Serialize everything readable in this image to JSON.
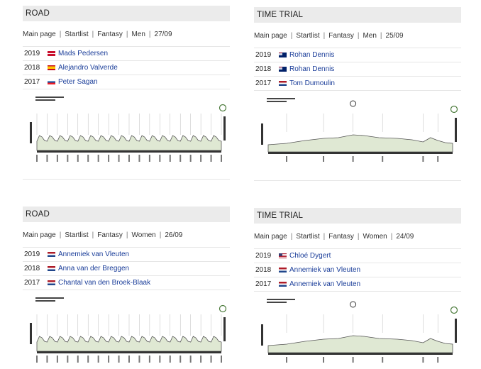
{
  "panels": [
    {
      "title": "ROAD",
      "nav": [
        "Main page",
        "Startlist",
        "Fantasy",
        "Men",
        "27/09"
      ],
      "winners": [
        {
          "year": "2019",
          "flag": "dk",
          "name": "Mads Pedersen"
        },
        {
          "year": "2018",
          "flag": "es",
          "name": "Alejandro Valverde"
        },
        {
          "year": "2017",
          "flag": "sk",
          "name": "Peter Sagan"
        }
      ],
      "profile_kind": "road"
    },
    {
      "title": "TIME TRIAL",
      "nav": [
        "Main page",
        "Startlist",
        "Fantasy",
        "Men",
        "25/09"
      ],
      "winners": [
        {
          "year": "2019",
          "flag": "au",
          "name": "Rohan Dennis"
        },
        {
          "year": "2018",
          "flag": "au",
          "name": "Rohan Dennis"
        },
        {
          "year": "2017",
          "flag": "nl",
          "name": "Tom Dumoulin"
        }
      ],
      "profile_kind": "itt"
    },
    {
      "title": "ROAD",
      "nav": [
        "Main page",
        "Startlist",
        "Fantasy",
        "Women",
        "26/09"
      ],
      "winners": [
        {
          "year": "2019",
          "flag": "nl",
          "name": "Annemiek van Vleuten"
        },
        {
          "year": "2018",
          "flag": "nl",
          "name": "Anna van der Breggen"
        },
        {
          "year": "2017",
          "flag": "nl",
          "name": "Chantal van den Broek-Blaak"
        }
      ],
      "profile_kind": "road"
    },
    {
      "title": "TIME TRIAL",
      "nav": [
        "Main page",
        "Startlist",
        "Fantasy",
        "Women",
        "24/09"
      ],
      "winners": [
        {
          "year": "2019",
          "flag": "us",
          "name": "Chloé Dygert"
        },
        {
          "year": "2018",
          "flag": "nl",
          "name": "Annemiek van Vleuten"
        },
        {
          "year": "2017",
          "flag": "nl",
          "name": "Annemiek van Vleuten"
        }
      ],
      "profile_kind": "itt"
    }
  ]
}
